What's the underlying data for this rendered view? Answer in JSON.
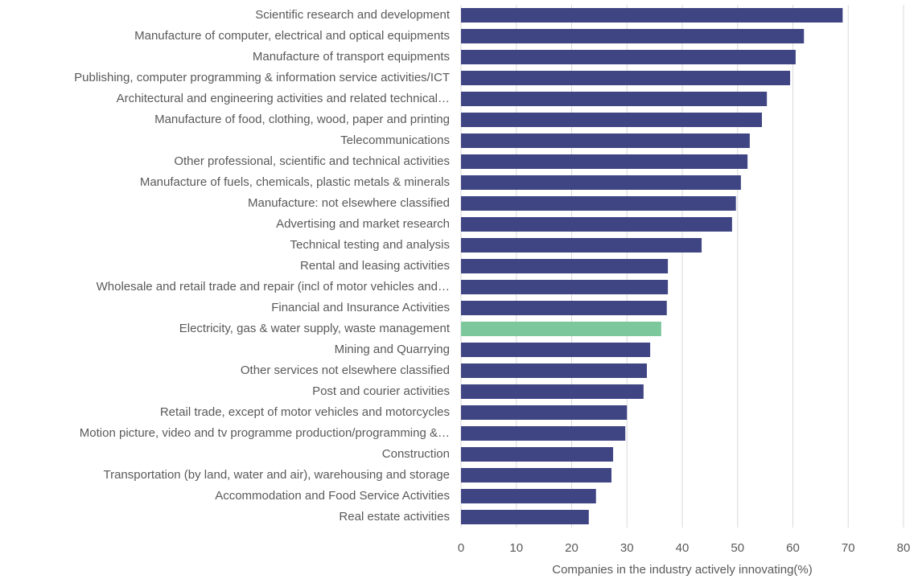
{
  "chart_data": {
    "type": "barh",
    "x_label": "Companies in the industry actively innovating(%)",
    "categories": [
      "Scientific research and development",
      "Manufacture of computer, electrical and optical equipments",
      "Manufacture of transport equipments",
      "Publishing, computer programming & information service activities/ICT",
      "Architectural and engineering activities and related technical…",
      "Manufacture of food, clothing, wood, paper and printing",
      "Telecommunications",
      "Other professional, scientific and technical activities",
      "Manufacture of fuels, chemicals, plastic metals & minerals",
      "Manufacture: not elsewhere classified",
      "Advertising and market research",
      "Technical testing and analysis",
      "Rental and leasing activities",
      "Wholesale and retail trade and repair (incl of motor vehicles and…",
      "Financial and Insurance Activities",
      "Electricity, gas & water supply, waste management",
      "Mining and Quarrying",
      "Other services not elsewhere classified",
      "Post and courier activities",
      "Retail trade, except of motor vehicles and motorcycles",
      "Motion picture, video and tv programme production/programming &…",
      "Construction",
      "Transportation (by land, water and air), warehousing and storage",
      "Accommodation and Food Service Activities",
      "Real estate activities"
    ],
    "values": [
      69,
      62,
      60.5,
      59.5,
      55.3,
      54.4,
      52.2,
      51.8,
      50.6,
      49.7,
      49,
      43.5,
      37.4,
      37.4,
      37.2,
      36.2,
      34.2,
      33.6,
      33,
      30,
      29.7,
      27.5,
      27.2,
      24.4,
      23.1
    ],
    "colors": [
      "#3f4483",
      "#3f4483",
      "#3f4483",
      "#3f4483",
      "#3f4483",
      "#3f4483",
      "#3f4483",
      "#3f4483",
      "#3f4483",
      "#3f4483",
      "#3f4483",
      "#3f4483",
      "#3f4483",
      "#3f4483",
      "#3f4483",
      "#7cc89c",
      "#3f4483",
      "#3f4483",
      "#3f4483",
      "#3f4483",
      "#3f4483",
      "#3f4483",
      "#3f4483",
      "#3f4483",
      "#3f4483"
    ],
    "xlim": [
      0,
      80
    ],
    "xticks": [
      0,
      10,
      20,
      30,
      40,
      50,
      60,
      70,
      80
    ],
    "grid": true
  }
}
